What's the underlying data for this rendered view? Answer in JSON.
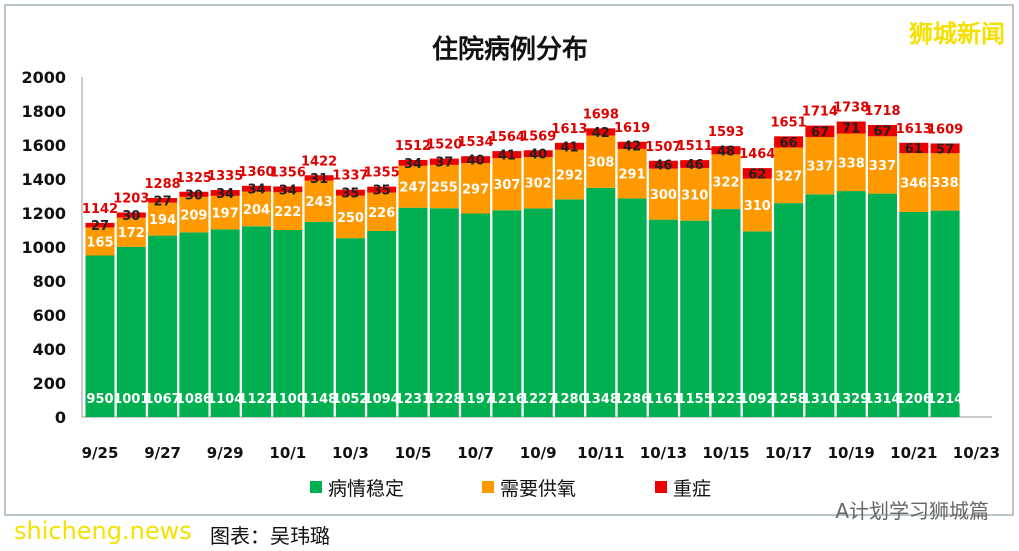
{
  "chart_data": {
    "type": "bar",
    "stacked": true,
    "title": "住院病例分布",
    "categories": [
      "9/25",
      "9/26",
      "9/27",
      "9/28",
      "9/29",
      "9/30",
      "10/1",
      "10/2",
      "10/3",
      "10/4",
      "10/5",
      "10/6",
      "10/7",
      "10/8",
      "10/9",
      "10/10",
      "10/11",
      "10/12",
      "10/13",
      "10/14",
      "10/15",
      "10/16",
      "10/17",
      "10/18",
      "10/19",
      "10/20",
      "10/21",
      "10/22"
    ],
    "xticks": [
      "9/25",
      "9/27",
      "9/29",
      "10/1",
      "10/3",
      "10/5",
      "10/7",
      "10/9",
      "10/11",
      "10/13",
      "10/15",
      "10/17",
      "10/19",
      "10/21",
      "10/23"
    ],
    "yticks": [
      0,
      200,
      400,
      600,
      800,
      1000,
      1200,
      1400,
      1600,
      1800,
      2000
    ],
    "ylim": [
      0,
      2000
    ],
    "series": [
      {
        "name": "病情稳定",
        "color": "#00b050",
        "values": [
          950,
          1001,
          1067,
          1086,
          1104,
          1122,
          1100,
          1148,
          1052,
          1094,
          1231,
          1228,
          1197,
          1216,
          1227,
          1280,
          1348,
          1286,
          1161,
          1155,
          1223,
          1092,
          1258,
          1310,
          1329,
          1314,
          1206,
          1214
        ]
      },
      {
        "name": "需要供氧",
        "color": "#ff9900",
        "values": [
          165,
          172,
          194,
          209,
          197,
          204,
          222,
          243,
          250,
          226,
          247,
          255,
          297,
          307,
          302,
          292,
          308,
          291,
          300,
          310,
          322,
          310,
          327,
          337,
          338,
          337,
          346,
          338
        ]
      },
      {
        "name": "重症",
        "color": "#ee0000",
        "values": [
          27,
          30,
          27,
          30,
          34,
          34,
          34,
          31,
          35,
          35,
          34,
          37,
          40,
          41,
          40,
          41,
          42,
          42,
          46,
          46,
          48,
          62,
          66,
          67,
          71,
          67,
          61,
          57
        ]
      }
    ],
    "totals": [
      1142,
      1203,
      1288,
      1325,
      1335,
      1360,
      1356,
      1422,
      1337,
      1355,
      1512,
      1520,
      1534,
      1564,
      1569,
      1613,
      1698,
      1619,
      1507,
      1511,
      1593,
      1464,
      1651,
      1714,
      1738,
      1718,
      1613,
      1609
    ],
    "legend": "bottom"
  },
  "watermark": "狮城新闻",
  "wechat": "A计划学习狮城篇",
  "caption": "图表：吴玮璐",
  "site": "shicheng.news"
}
